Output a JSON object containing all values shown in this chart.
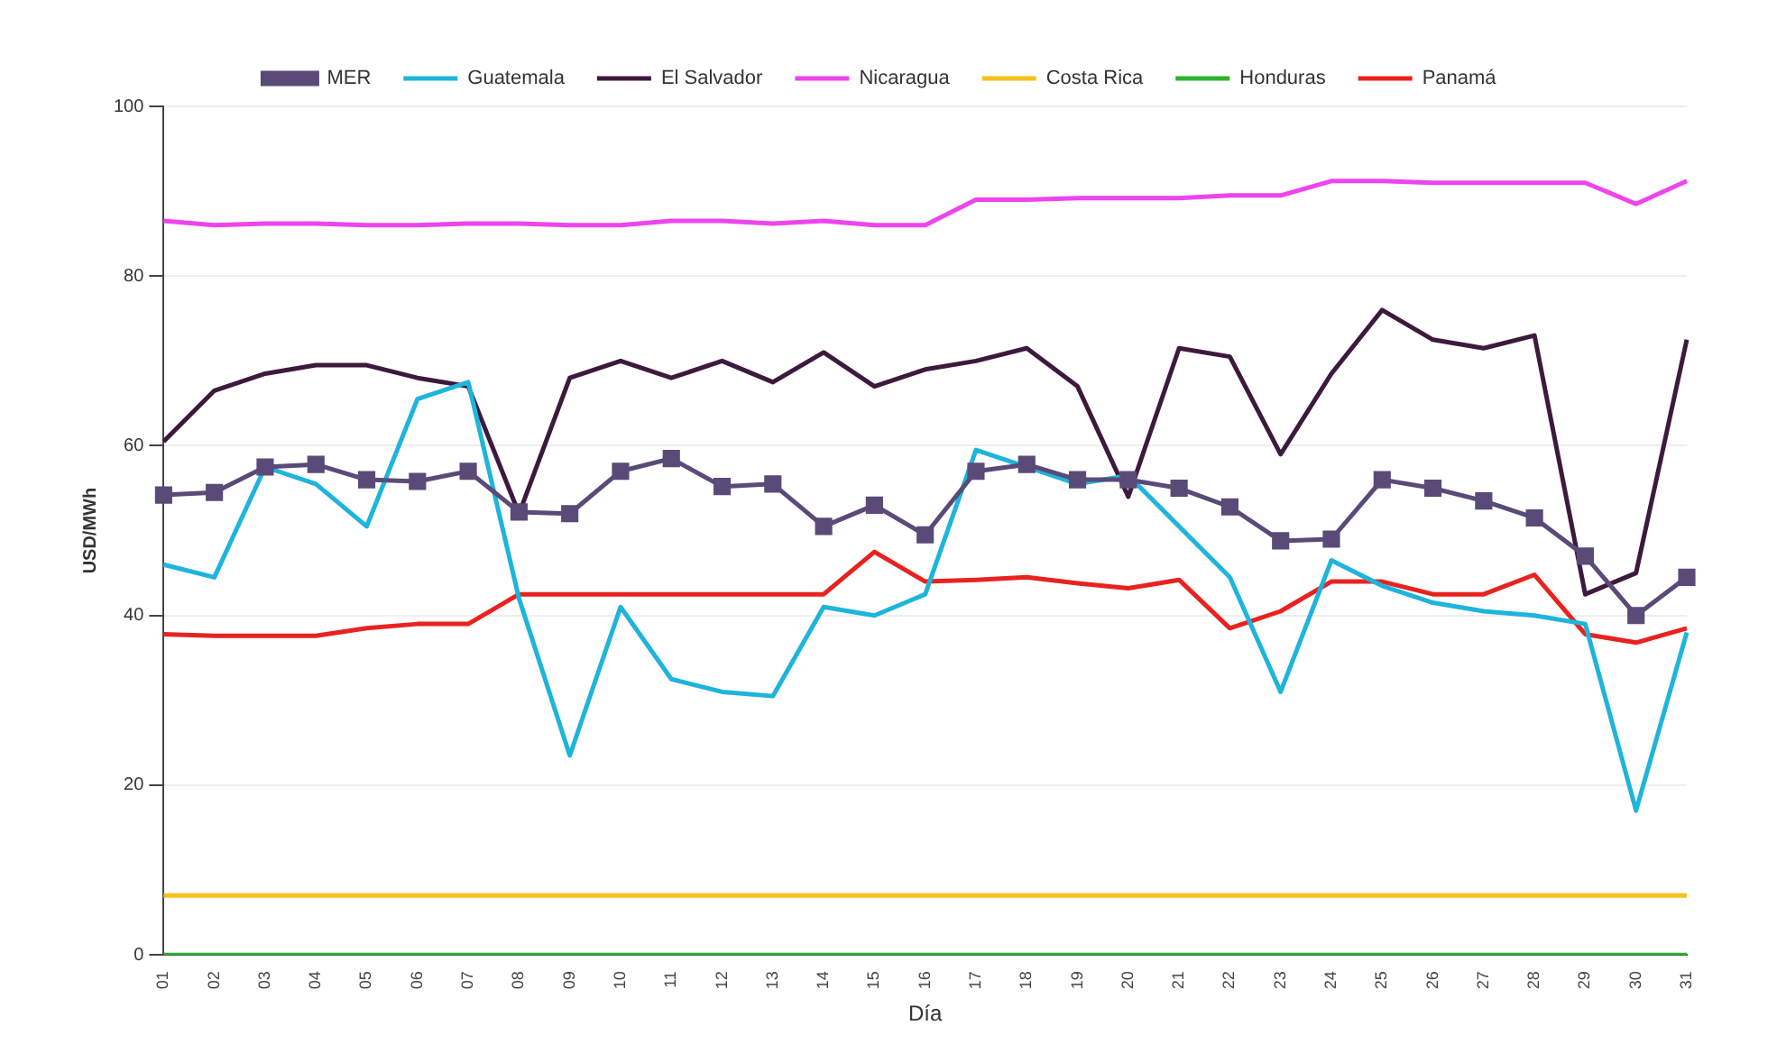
{
  "chart_data": {
    "type": "line",
    "xlabel": "Día",
    "ylabel": "USD/MWh",
    "categories": [
      "01",
      "02",
      "03",
      "04",
      "05",
      "06",
      "07",
      "08",
      "09",
      "10",
      "11",
      "12",
      "13",
      "14",
      "15",
      "16",
      "17",
      "18",
      "19",
      "20",
      "21",
      "22",
      "23",
      "24",
      "25",
      "26",
      "27",
      "28",
      "29",
      "30",
      "31"
    ],
    "ylim": [
      0,
      100
    ],
    "yticks": [
      0,
      20,
      40,
      60,
      80,
      100
    ],
    "grid": "y",
    "legend": "top",
    "marker": "none",
    "line_style": "solid",
    "series": [
      {
        "name": "Guatemala",
        "color": "#1eb4dc",
        "values": [
          46,
          44.5,
          57.5,
          55.5,
          50.5,
          65.5,
          67.5,
          42,
          23.5,
          41,
          32.5,
          31,
          30.5,
          41,
          40,
          42.5,
          59.5,
          57.5,
          55.5,
          56.5,
          50.5,
          44.5,
          31,
          46.5,
          43.5,
          41.5,
          40.5,
          40,
          39,
          17,
          38
        ]
      },
      {
        "name": "El Salvador",
        "color": "#3d1a3d",
        "values": [
          60.5,
          66.5,
          68.5,
          69.5,
          69.5,
          68,
          67,
          52,
          68,
          70,
          68,
          70,
          67.5,
          71,
          67,
          69,
          70,
          71.5,
          67,
          54,
          71.5,
          70.5,
          59,
          68.5,
          76,
          72.5,
          71.5,
          73,
          42.5,
          45,
          72.5
        ]
      },
      {
        "name": "Nicaragua",
        "color": "#ee44ee",
        "values": [
          86.5,
          86,
          86.2,
          86.2,
          86,
          86,
          86.2,
          86.2,
          86,
          86,
          86.5,
          86.5,
          86.2,
          86.5,
          86,
          86,
          89,
          89,
          89.2,
          89.2,
          89.2,
          89.5,
          89.5,
          91.2,
          91.2,
          91,
          91,
          91,
          91,
          88.5,
          91.2
        ]
      },
      {
        "name": "MER",
        "color": "#5a4a78",
        "marker": "square",
        "values": [
          54.2,
          54.5,
          57.5,
          57.8,
          56,
          55.8,
          57,
          52.2,
          52,
          57,
          58.5,
          55.2,
          55.5,
          50.5,
          53,
          49.5,
          57,
          57.8,
          56,
          56,
          55,
          52.8,
          48.8,
          49,
          56,
          55,
          53.5,
          51.5,
          47,
          40,
          44.5
        ]
      },
      {
        "name": "Costa Rica",
        "color": "#f5c21b",
        "values": [
          7,
          7,
          7,
          7,
          7,
          7,
          7,
          7,
          7,
          7,
          7,
          7,
          7,
          7,
          7,
          7,
          7,
          7,
          7,
          7,
          7,
          7,
          7,
          7,
          7,
          7,
          7,
          7,
          7,
          7,
          7
        ]
      },
      {
        "name": "Honduras",
        "color": "#2db32d",
        "values": [
          0,
          0,
          0,
          0,
          0,
          0,
          0,
          0,
          0,
          0,
          0,
          0,
          0,
          0,
          0,
          0,
          0,
          0,
          0,
          0,
          0,
          0,
          0,
          0,
          0,
          0,
          0,
          0,
          0,
          0,
          0
        ]
      },
      {
        "name": "Panamá",
        "color": "#e8231f",
        "values": [
          37.8,
          37.6,
          37.6,
          37.6,
          38.5,
          39,
          39,
          42.5,
          42.5,
          42.5,
          42.5,
          42.5,
          42.5,
          42.5,
          47.5,
          44,
          44.2,
          44.5,
          43.8,
          43.2,
          44.2,
          38.5,
          40.5,
          44,
          44,
          42.5,
          42.5,
          44.8,
          37.8,
          36.8,
          38.5
        ]
      }
    ]
  }
}
